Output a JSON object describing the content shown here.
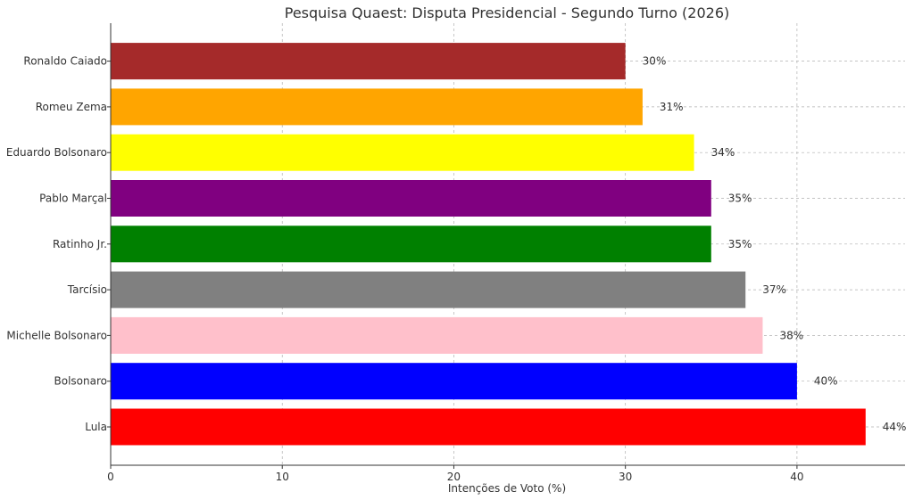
{
  "chart_data": {
    "type": "bar",
    "orientation": "horizontal",
    "title": "Pesquisa Quaest: Disputa Presidencial - Segundo Turno (2026)",
    "xlabel": "Intenções de Voto (%)",
    "ylabel": "",
    "xlim": [
      0,
      46.3
    ],
    "xticks": [
      0,
      10,
      20,
      30,
      40
    ],
    "grid": true,
    "categories": [
      "Lula",
      "Bolsonaro",
      "Michelle Bolsonaro",
      "Tarcísio",
      "Ratinho Jr.",
      "Pablo Marçal",
      "Eduardo Bolsonaro",
      "Romeu Zema",
      "Ronaldo Caiado"
    ],
    "values": [
      44,
      40,
      38,
      37,
      35,
      35,
      34,
      31,
      30
    ],
    "data_labels": [
      "44%",
      "40%",
      "38%",
      "37%",
      "35%",
      "35%",
      "34%",
      "31%",
      "30%"
    ],
    "colors": [
      "#ff0000",
      "#0000ff",
      "#ffc0cb",
      "#808080",
      "#008000",
      "#800080",
      "#ffff00",
      "#ffa500",
      "#a52a2a"
    ]
  }
}
